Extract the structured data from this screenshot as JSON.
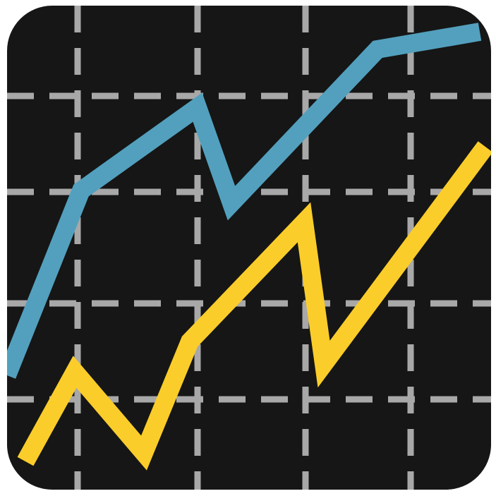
{
  "icon": {
    "name": "line-chart-icon",
    "colors": {
      "tile_background": "#161616",
      "grid": "#a8a8a8",
      "series_blue": "#52a0be",
      "series_yellow": "#fbcd2a"
    },
    "grid": "dashed"
  }
}
